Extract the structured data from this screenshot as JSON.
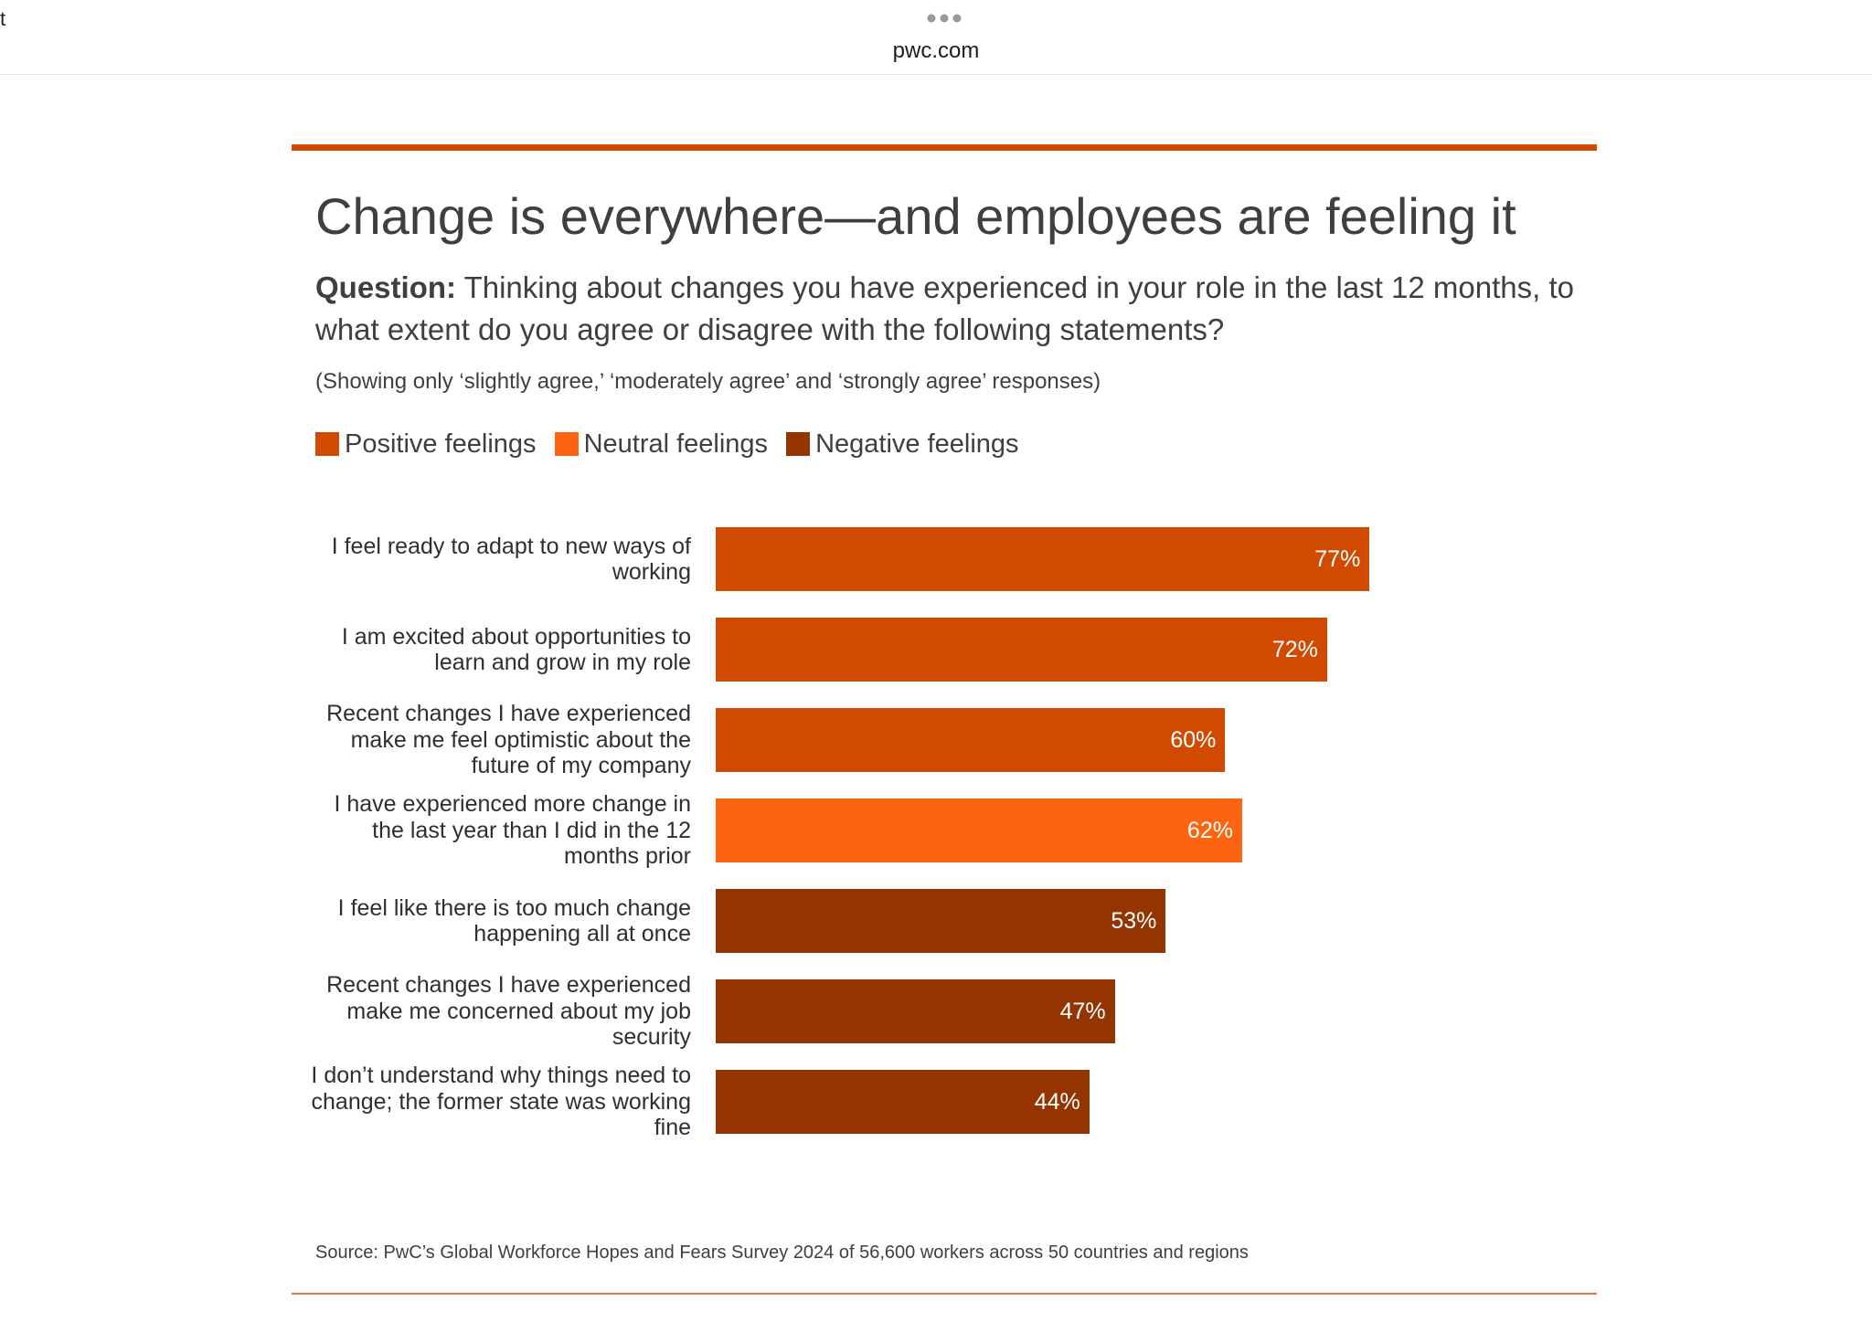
{
  "browser": {
    "corner_mark": "t",
    "more_icon": "more-dots-icon",
    "url": "pwc.com"
  },
  "figure": {
    "title": "Change is everywhere—and employees are feeling it",
    "question_label": "Question:",
    "question_text": "Thinking about changes you have experienced in your role in the last 12 months, to what extent do you agree or disagree with the following statements?",
    "note": "(Showing only ‘slightly agree,’ ‘moderately agree’ and ‘strongly agree’ responses)",
    "source": "Source: PwC’s Global Workforce Hopes and Fears Survey 2024 of 56,600 workers across 50 countries and regions"
  },
  "colors": {
    "accent": "#d04a02",
    "positive": "#d04a02",
    "neutral": "#fd6412",
    "negative": "#933401"
  },
  "chart_data": {
    "type": "bar",
    "orientation": "horizontal",
    "title": "Change is everywhere—and employees are feeling it",
    "xlabel": "",
    "ylabel": "",
    "xlim": [
      0,
      100
    ],
    "value_suffix": "%",
    "grid": false,
    "legend_position": "top-left",
    "legend": [
      {
        "name": "Positive feelings",
        "key": "positive"
      },
      {
        "name": "Neutral feelings",
        "key": "neutral"
      },
      {
        "name": "Negative feelings",
        "key": "negative"
      }
    ],
    "categories": [
      "I feel ready to adapt to new ways of working",
      "I am excited about opportunities to learn and grow in my role",
      "Recent changes I have experienced make me feel optimistic about the future of my company",
      "I have experienced more change in the last year than I did in the 12 months prior",
      "I feel like there is too much change happening all at once",
      "Recent changes I have experienced make me concerned about my job security",
      "I don’t understand why things need to change; the former state was working fine"
    ],
    "values": [
      77,
      72,
      60,
      62,
      53,
      47,
      44
    ],
    "value_labels": [
      "77%",
      "72%",
      "60%",
      "62%",
      "53%",
      "47%",
      "44%"
    ],
    "groups": [
      "positive",
      "positive",
      "positive",
      "neutral",
      "negative",
      "negative",
      "negative"
    ]
  }
}
